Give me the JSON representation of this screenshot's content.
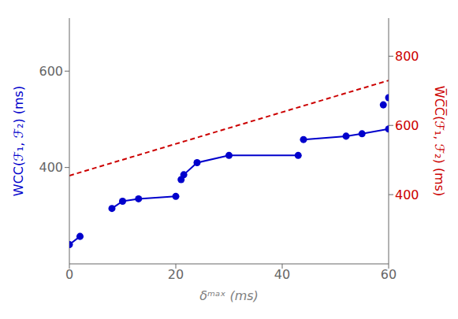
{
  "chart_data": {
    "type": "line",
    "xlabel": "δᵐᵃˣ (ms)",
    "ylabel": "WCC(ℱ₁, ℱ₂) (ms)",
    "y2label": "W̅C̅C̅(ℱ₁, ℱ₂) (ms)",
    "xlim": [
      0,
      60
    ],
    "xticks": [
      0,
      20,
      40,
      60
    ],
    "ylim": [
      200,
      710
    ],
    "yticks": [
      400,
      600
    ],
    "y2lim": [
      200,
      910
    ],
    "y2ticks": [
      400,
      600,
      800
    ],
    "grid": false,
    "series": [
      {
        "type": "line",
        "color": "#0000cc",
        "line_style": "solid",
        "x": [
          0,
          2
        ],
        "values": [
          240,
          257
        ]
      },
      {
        "type": "line",
        "color": "#0000cc",
        "line_style": "solid",
        "x": [
          8,
          10,
          13,
          20
        ],
        "values": [
          315,
          330,
          335,
          340
        ]
      },
      {
        "type": "line",
        "color": "#0000cc",
        "line_style": "solid",
        "x": [
          21,
          21.5,
          24,
          30,
          43
        ],
        "values": [
          375,
          385,
          410,
          425,
          425
        ]
      },
      {
        "type": "line",
        "color": "#0000cc",
        "line_style": "solid",
        "x": [
          44,
          52,
          55,
          60
        ],
        "values": [
          458,
          465,
          470,
          480
        ]
      },
      {
        "type": "scatter",
        "color": "#0000cc",
        "marker": "circle",
        "x": [
          0,
          2,
          8,
          10,
          13,
          20,
          21,
          21.5,
          24,
          30,
          43,
          44,
          52,
          55,
          60,
          59,
          60
        ],
        "values": [
          240,
          257,
          315,
          330,
          335,
          340,
          375,
          385,
          410,
          425,
          425,
          458,
          465,
          470,
          480,
          530,
          545
        ]
      },
      {
        "type": "line",
        "color": "#cc0000",
        "line_style": "dashed",
        "axis": "y2",
        "x": [
          0,
          60
        ],
        "values": [
          455,
          730
        ]
      }
    ]
  }
}
